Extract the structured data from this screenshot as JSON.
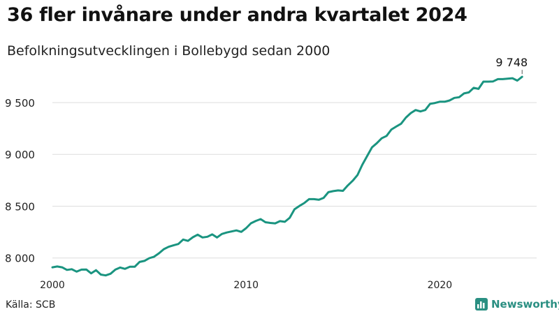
{
  "header": {
    "title": "36 fler invånare under andra kvartalet 2024",
    "subtitle": "Befolkningsutvecklingen i Bollebygd sedan 2000"
  },
  "footer": {
    "source": "Källa: SCB",
    "brand": "Newsworthy",
    "brand_icon": "bar-chart-logo-icon"
  },
  "colors": {
    "line": "#1a9480",
    "grid": "#dddddd",
    "brand": "#2a8f82"
  },
  "chart_data": {
    "type": "line",
    "title": "36 fler invånare under andra kvartalet 2024",
    "subtitle": "Befolkningsutvecklingen i Bollebygd sedan 2000",
    "xlabel": "",
    "ylabel": "",
    "xlim": [
      2000,
      2025
    ],
    "ylim": [
      7850,
      9850
    ],
    "y_ticks": [
      8000,
      8500,
      9000,
      9500
    ],
    "y_tick_labels": [
      "8 000",
      "8 500",
      "9 000",
      "9 500"
    ],
    "x_ticks": [
      2000,
      2010,
      2020
    ],
    "x_tick_labels": [
      "2000",
      "2010",
      "2020"
    ],
    "grid": "horizontal",
    "last_value_label": "9 748",
    "frequency": "quarterly",
    "start": "2000 Q1",
    "end": "2024 Q2",
    "values": [
      7910,
      7918,
      7910,
      7885,
      7892,
      7868,
      7888,
      7889,
      7852,
      7882,
      7840,
      7832,
      7848,
      7888,
      7908,
      7895,
      7915,
      7915,
      7962,
      7972,
      7998,
      8012,
      8045,
      8085,
      8108,
      8122,
      8135,
      8178,
      8165,
      8200,
      8225,
      8198,
      8205,
      8228,
      8198,
      8232,
      8246,
      8256,
      8266,
      8252,
      8288,
      8335,
      8358,
      8375,
      8345,
      8338,
      8334,
      8356,
      8349,
      8388,
      8470,
      8502,
      8530,
      8568,
      8568,
      8562,
      8580,
      8635,
      8645,
      8652,
      8648,
      8700,
      8745,
      8800,
      8900,
      8985,
      9068,
      9108,
      9155,
      9178,
      9240,
      9268,
      9296,
      9355,
      9398,
      9428,
      9414,
      9428,
      9488,
      9496,
      9508,
      9508,
      9520,
      9545,
      9552,
      9588,
      9598,
      9642,
      9632,
      9702,
      9702,
      9704,
      9726,
      9726,
      9730,
      9735,
      9712,
      9748
    ]
  }
}
